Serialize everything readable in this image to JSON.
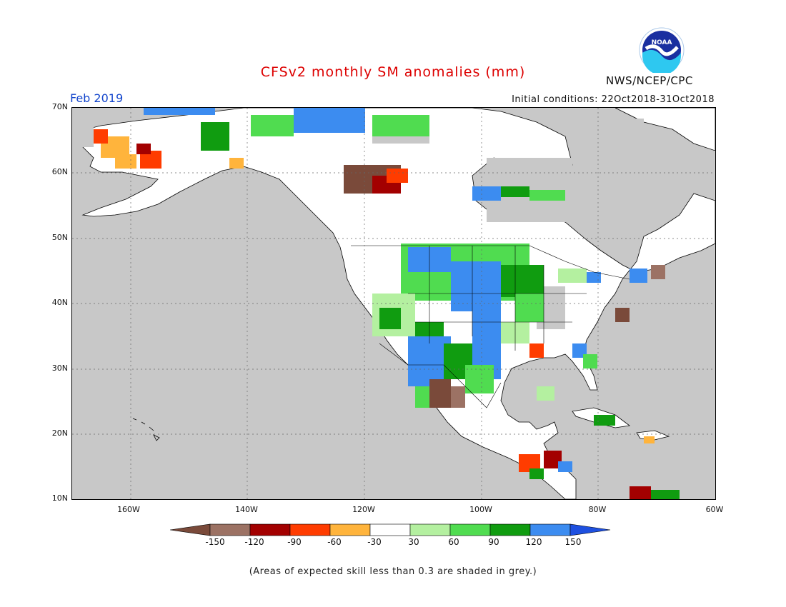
{
  "header": {
    "title": "CFSv2 monthly SM anomalies (mm)",
    "period": "Feb 2019",
    "initial_conditions": "Initial conditions: 22Oct2018-31Oct2018",
    "agency": "NWS/NCEP/CPC",
    "logo_text": "NOAA"
  },
  "map": {
    "lat_labels": [
      "70N",
      "60N",
      "50N",
      "40N",
      "30N",
      "20N",
      "10N"
    ],
    "lon_labels": [
      "160W",
      "140W",
      "120W",
      "100W",
      "80W",
      "60W"
    ],
    "extent": {
      "lon_min": -172,
      "lon_max": -60,
      "lat_min": 10,
      "lat_max": 70
    },
    "projection": "lat-lon",
    "grey_shading": "expected skill less than 0.3",
    "colors": {
      "ocean_grey": "#c8c8c8",
      "neutral_white": "#ffffff"
    }
  },
  "colorbar": {
    "labels": [
      "-150",
      "-120",
      "-90",
      "-60",
      "-30",
      "30",
      "60",
      "90",
      "120",
      "150"
    ],
    "colors": [
      "#7a4a3a",
      "#9c7264",
      "#a30000",
      "#ff3c00",
      "#ffb43c",
      "#ffffff",
      "#b4f0a0",
      "#50dc50",
      "#109c10",
      "#3c8cf0",
      "#1e50e0"
    ]
  },
  "footnote": "(Areas of expected skill less than 0.3 are shaded in grey.)"
}
